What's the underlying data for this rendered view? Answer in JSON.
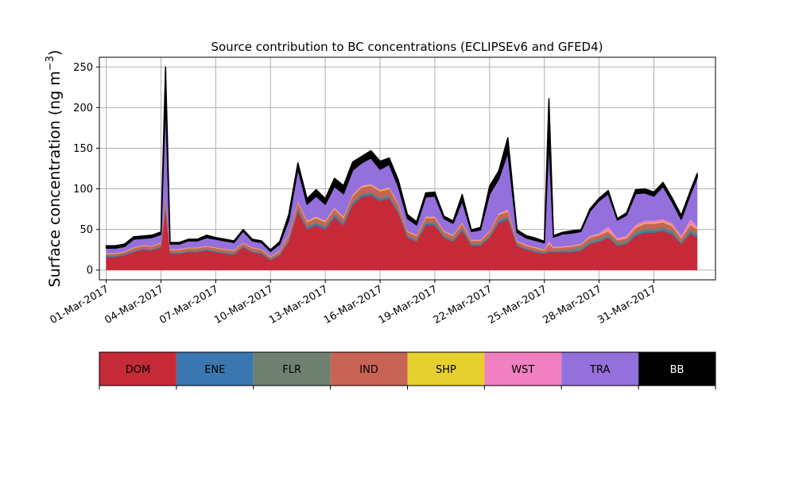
{
  "chart_data": {
    "type": "area",
    "title": "Source contribution to BC concentrations (ECLIPSEv6 and GFED4)",
    "xlabel": "",
    "ylabel": "Surface concentration (ng m",
    "ylabel_sup": "−3",
    "ylabel_tail": ")",
    "stacked": true,
    "grid": true,
    "ylim": [
      -12,
      262
    ],
    "xlim": [
      "2017-02-28T15:00",
      "2017-04-03T09:00"
    ],
    "yticks": [
      0,
      50,
      100,
      150,
      200,
      250
    ],
    "xtick_dates": [
      "2017-03-01",
      "2017-03-04",
      "2017-03-07",
      "2017-03-10",
      "2017-03-13",
      "2017-03-16",
      "2017-03-19",
      "2017-03-22",
      "2017-03-25",
      "2017-03-28",
      "2017-03-31"
    ],
    "xtick_labels": [
      "01-Mar-2017",
      "04-Mar-2017",
      "07-Mar-2017",
      "10-Mar-2017",
      "13-Mar-2017",
      "16-Mar-2017",
      "19-Mar-2017",
      "22-Mar-2017",
      "25-Mar-2017",
      "28-Mar-2017",
      "31-Mar-2017"
    ],
    "x": [
      "2017-03-01T00:00",
      "2017-03-01T12:00",
      "2017-03-02T00:00",
      "2017-03-02T12:00",
      "2017-03-03T00:00",
      "2017-03-03T12:00",
      "2017-03-04T00:00",
      "2017-03-04T06:00",
      "2017-03-04T12:00",
      "2017-03-05T00:00",
      "2017-03-05T12:00",
      "2017-03-06T00:00",
      "2017-03-06T12:00",
      "2017-03-07T00:00",
      "2017-03-07T12:00",
      "2017-03-08T00:00",
      "2017-03-08T12:00",
      "2017-03-09T00:00",
      "2017-03-09T12:00",
      "2017-03-10T00:00",
      "2017-03-10T12:00",
      "2017-03-11T00:00",
      "2017-03-11T12:00",
      "2017-03-12T00:00",
      "2017-03-12T12:00",
      "2017-03-13T00:00",
      "2017-03-13T12:00",
      "2017-03-14T00:00",
      "2017-03-14T12:00",
      "2017-03-15T00:00",
      "2017-03-15T12:00",
      "2017-03-16T00:00",
      "2017-03-16T12:00",
      "2017-03-17T00:00",
      "2017-03-17T12:00",
      "2017-03-18T00:00",
      "2017-03-18T12:00",
      "2017-03-19T00:00",
      "2017-03-19T12:00",
      "2017-03-20T00:00",
      "2017-03-20T12:00",
      "2017-03-21T00:00",
      "2017-03-21T12:00",
      "2017-03-22T00:00",
      "2017-03-22T12:00",
      "2017-03-23T00:00",
      "2017-03-23T12:00",
      "2017-03-24T00:00",
      "2017-03-24T12:00",
      "2017-03-25T00:00",
      "2017-03-25T06:00",
      "2017-03-25T12:00",
      "2017-03-26T00:00",
      "2017-03-26T12:00",
      "2017-03-27T00:00",
      "2017-03-27T12:00",
      "2017-03-28T00:00",
      "2017-03-28T12:00",
      "2017-03-29T00:00",
      "2017-03-29T12:00",
      "2017-03-30T00:00",
      "2017-03-30T12:00",
      "2017-03-31T00:00",
      "2017-03-31T12:00",
      "2017-04-01T00:00",
      "2017-04-01T12:00",
      "2017-04-02T00:00",
      "2017-04-02T09:00"
    ],
    "series": [
      {
        "name": "DOM",
        "color": "#c62a38",
        "values": [
          16,
          16,
          18,
          22,
          25,
          24,
          28,
          75,
          20,
          20,
          22,
          22,
          24,
          22,
          20,
          19,
          28,
          22,
          20,
          12,
          18,
          35,
          72,
          50,
          55,
          50,
          65,
          55,
          80,
          90,
          92,
          85,
          88,
          70,
          40,
          35,
          55,
          55,
          40,
          35,
          48,
          30,
          30,
          40,
          58,
          62,
          30,
          25,
          22,
          20,
          22,
          22,
          22,
          22,
          24,
          32,
          35,
          40,
          30,
          32,
          42,
          46,
          46,
          48,
          44,
          32,
          45,
          40
        ]
      },
      {
        "name": "ENE",
        "color": "#3a77b1",
        "values": [
          1,
          1,
          1,
          1,
          1,
          1,
          1,
          2,
          1,
          1,
          1,
          1,
          1,
          1,
          1,
          1,
          1,
          1,
          1,
          1,
          1,
          1,
          2,
          2,
          2,
          2,
          2,
          2,
          2,
          2,
          2,
          2,
          2,
          2,
          1,
          1,
          2,
          2,
          1,
          1,
          2,
          1,
          1,
          1,
          2,
          2,
          1,
          1,
          1,
          1,
          1,
          1,
          1,
          1,
          1,
          1,
          1,
          1,
          1,
          1,
          2,
          2,
          2,
          2,
          2,
          1,
          2,
          2
        ]
      },
      {
        "name": "FLR",
        "color": "#6e8070",
        "values": [
          1,
          1,
          1,
          1,
          1,
          1,
          1,
          2,
          1,
          1,
          1,
          1,
          1,
          1,
          1,
          1,
          1,
          1,
          1,
          1,
          1,
          2,
          2,
          2,
          2,
          2,
          2,
          2,
          2,
          2,
          2,
          2,
          2,
          2,
          2,
          2,
          2,
          2,
          2,
          2,
          2,
          2,
          2,
          2,
          2,
          2,
          1,
          1,
          1,
          1,
          1,
          1,
          2,
          3,
          3,
          3,
          3,
          3,
          3,
          3,
          3,
          3,
          3,
          3,
          3,
          2,
          3,
          3
        ]
      },
      {
        "name": "IND",
        "color": "#c86456",
        "values": [
          2,
          2,
          2,
          3,
          3,
          3,
          3,
          8,
          3,
          3,
          3,
          3,
          3,
          3,
          3,
          3,
          3,
          3,
          3,
          2,
          3,
          5,
          7,
          5,
          5,
          5,
          6,
          5,
          7,
          8,
          8,
          8,
          8,
          7,
          4,
          4,
          5,
          5,
          4,
          4,
          5,
          3,
          3,
          4,
          6,
          6,
          3,
          3,
          3,
          2,
          8,
          3,
          3,
          3,
          3,
          4,
          4,
          4,
          3,
          3,
          5,
          6,
          6,
          6,
          5,
          4,
          6,
          5
        ]
      },
      {
        "name": "SHP",
        "color": "#e6d030",
        "values": [
          0.5,
          0.5,
          0.5,
          0.5,
          0.5,
          0.5,
          0.5,
          1,
          0.5,
          0.5,
          0.5,
          0.5,
          0.5,
          0.5,
          0.5,
          0.5,
          0.5,
          0.5,
          0.5,
          0.5,
          0.5,
          0.5,
          1,
          1,
          1,
          1,
          1,
          1,
          1,
          1,
          1,
          1,
          1,
          1,
          0.5,
          0.5,
          1,
          1,
          0.5,
          0.5,
          1,
          0.5,
          0.5,
          0.5,
          1,
          1,
          0.5,
          0.5,
          0.5,
          0.5,
          1,
          0.5,
          0.5,
          0.5,
          0.5,
          0.5,
          0.5,
          1,
          0.5,
          0.5,
          1,
          1,
          1,
          1,
          1,
          0.5,
          1,
          1
        ]
      },
      {
        "name": "WST",
        "color": "#f080c0",
        "values": [
          0.5,
          0.5,
          0.5,
          0.5,
          0.5,
          0.5,
          0.5,
          2,
          0.5,
          0.5,
          0.5,
          0.5,
          0.5,
          0.5,
          0.5,
          0.5,
          0.5,
          0.5,
          0.5,
          0.5,
          0.5,
          1,
          1,
          1,
          1,
          1,
          1,
          1,
          1,
          1,
          1,
          1,
          1,
          1,
          1,
          1,
          1,
          1,
          1,
          1,
          1,
          1,
          1,
          1,
          1,
          2,
          1,
          1,
          1,
          1,
          3,
          1,
          1,
          1,
          1,
          2,
          2,
          5,
          2,
          3,
          3,
          3,
          3,
          3,
          3,
          3,
          6,
          3
        ]
      },
      {
        "name": "TRA",
        "color": "#9370db",
        "values": [
          6,
          6,
          6,
          10,
          8,
          10,
          10,
          120,
          6,
          6,
          8,
          8,
          10,
          10,
          10,
          9,
          14,
          8,
          8,
          6,
          8,
          17,
          40,
          20,
          25,
          20,
          26,
          28,
          30,
          28,
          32,
          25,
          28,
          20,
          15,
          12,
          24,
          25,
          15,
          14,
          26,
          10,
          12,
          45,
          42,
          70,
          10,
          8,
          8,
          8,
          125,
          12,
          15,
          15,
          15,
          30,
          40,
          40,
          22,
          25,
          38,
          34,
          30,
          40,
          26,
          20,
          30,
          60
        ]
      },
      {
        "name": "BB",
        "color": "#000000",
        "values": [
          3,
          3,
          3,
          3,
          3,
          3,
          3,
          40,
          2,
          2,
          2,
          2,
          3,
          2,
          2,
          2,
          2,
          2,
          2,
          2,
          3,
          7,
          7,
          7,
          8,
          7,
          10,
          10,
          10,
          8,
          9,
          10,
          8,
          8,
          5,
          4,
          5,
          5,
          3,
          3,
          8,
          2,
          3,
          10,
          10,
          18,
          3,
          3,
          3,
          2,
          50,
          2,
          2,
          3,
          2,
          3,
          3,
          4,
          2,
          3,
          5,
          5,
          5,
          5,
          5,
          5,
          5,
          5
        ]
      }
    ]
  },
  "legend": {
    "entries": [
      "DOM",
      "ENE",
      "FLR",
      "IND",
      "SHP",
      "WST",
      "TRA",
      "BB"
    ],
    "colors": [
      "#c62a38",
      "#3a77b1",
      "#6e8070",
      "#c86456",
      "#e6d030",
      "#f080c0",
      "#9370db",
      "#000000"
    ],
    "text_colors": [
      "#000000",
      "#000000",
      "#000000",
      "#000000",
      "#000000",
      "#000000",
      "#000000",
      "#ffffff"
    ]
  }
}
